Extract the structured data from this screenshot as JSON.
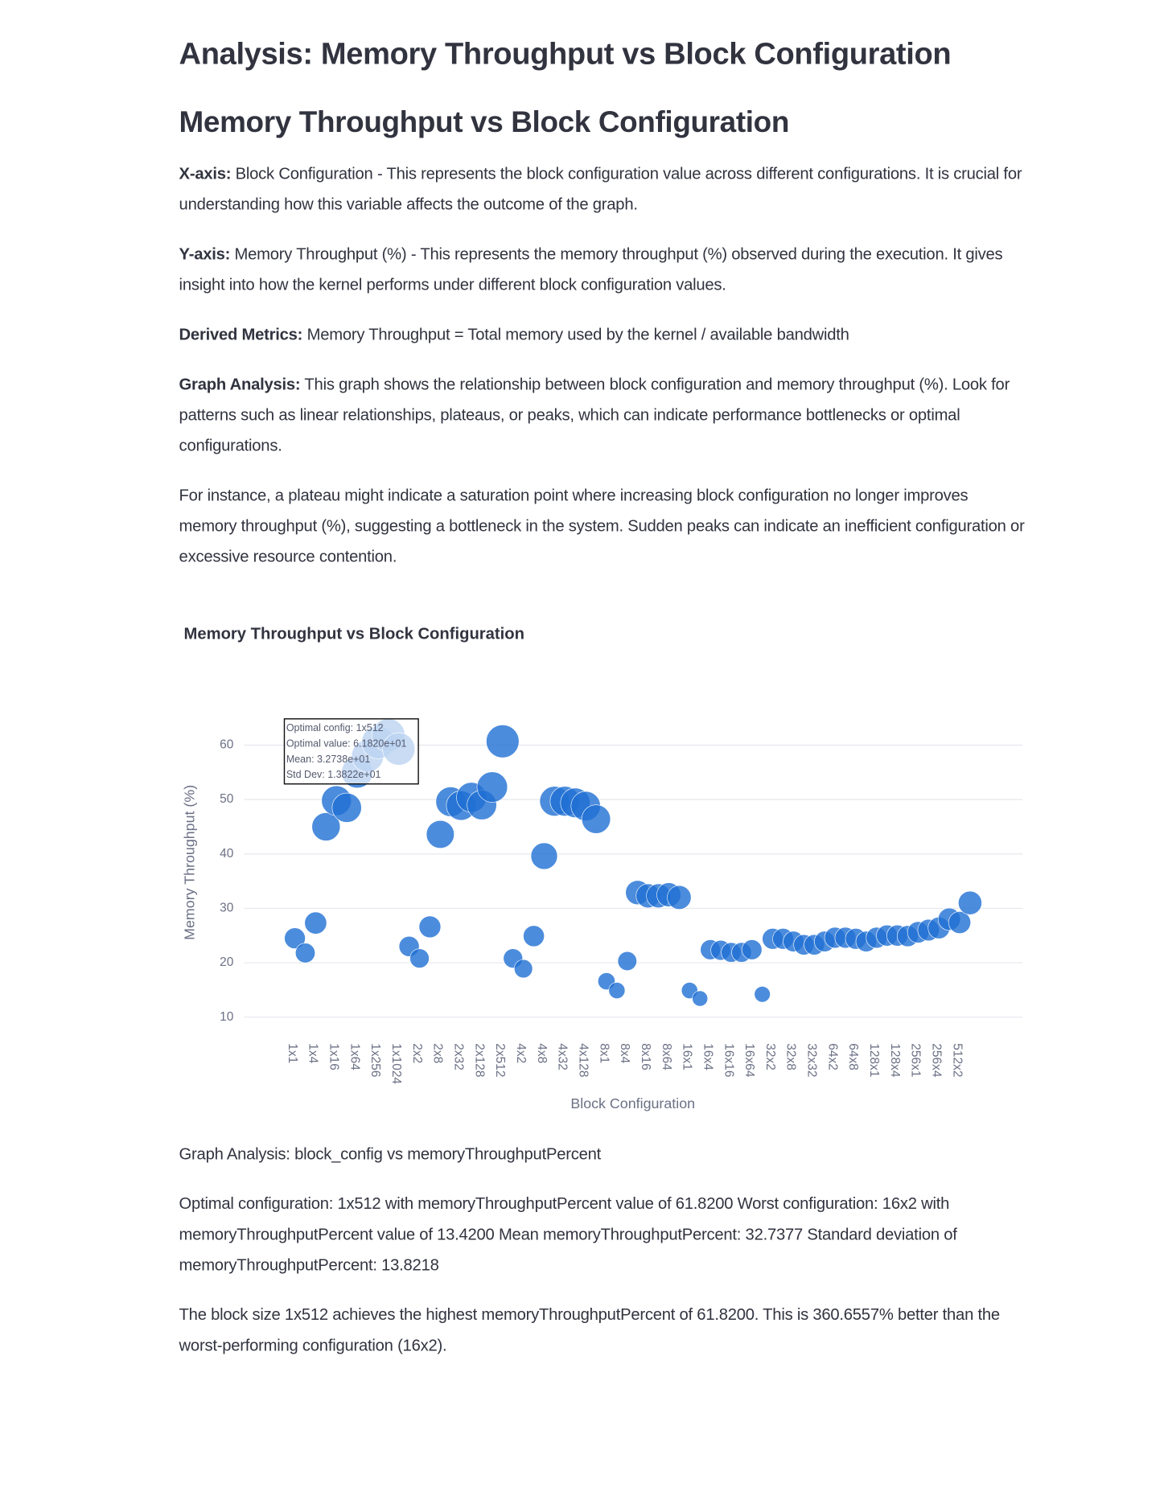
{
  "header": {
    "title": "Analysis: Memory Throughput vs Block Configuration"
  },
  "section_title": "Memory Throughput vs Block Configuration",
  "explanations": [
    {
      "label": "X-axis:",
      "text": "Block Configuration - This represents the block configuration value across different configurations. It is crucial for understanding how this variable affects the outcome of the graph."
    },
    {
      "label": "Y-axis:",
      "text": "Memory Throughput (%) - This represents the memory throughput (%) observed during the execution. It gives insight into how the kernel performs under different block configuration values."
    },
    {
      "label": "Derived Metrics:",
      "text": "Memory Throughput = Total memory used by the kernel / available bandwidth"
    },
    {
      "label": "Graph Analysis:",
      "text": "This graph shows the relationship between block configuration and memory throughput (%). Look for patterns such as linear relationships, plateaus, or peaks, which can indicate performance bottlenecks or optimal configurations."
    }
  ],
  "note": "For instance, a plateau might indicate a saturation point where increasing block configuration no longer improves memory throughput (%), suggesting a bottleneck in the system. Sudden peaks can indicate an inefficient configuration or excessive resource contention.",
  "chart_data": {
    "type": "scatter",
    "title": "Memory Throughput vs Block Configuration",
    "x_label": "Block Configuration",
    "y_label": "Memory Throughput (%)",
    "categories": [
      "1x1",
      null,
      "1x4",
      null,
      "1x16",
      null,
      "1x64",
      null,
      "1x256",
      null,
      "1x1024",
      null,
      "2x2",
      null,
      "2x8",
      null,
      "2x32",
      null,
      "2x128",
      null,
      "2x512",
      null,
      "4x2",
      null,
      "4x8",
      null,
      "4x32",
      null,
      "4x128",
      null,
      "8x1",
      null,
      "8x4",
      null,
      "8x16",
      null,
      "8x64",
      null,
      "16x1",
      null,
      "16x4",
      null,
      "16x16",
      null,
      "16x64",
      null,
      "32x2",
      null,
      "32x8",
      null,
      "32x32",
      null,
      "64x2",
      null,
      "64x8",
      null,
      "128x1",
      null,
      "128x4",
      null,
      "256x1",
      null,
      "256x4",
      null,
      "512x2",
      null
    ],
    "values": [
      24.5,
      21.8,
      27.3,
      45.0,
      49.8,
      48.5,
      55.0,
      58.0,
      60.5,
      61.82,
      59.3,
      23.0,
      20.8,
      26.6,
      43.6,
      49.6,
      48.9,
      50.4,
      49.0,
      52.3,
      60.7,
      20.8,
      18.9,
      24.9,
      39.6,
      49.7,
      49.7,
      49.4,
      48.8,
      46.4,
      16.6,
      14.9,
      20.3,
      32.9,
      32.3,
      32.3,
      32.5,
      32.0,
      14.9,
      13.42,
      22.4,
      22.3,
      21.9,
      21.9,
      22.4,
      14.2,
      24.4,
      24.4,
      23.9,
      23.3,
      23.3,
      23.9,
      24.6,
      24.6,
      24.4,
      23.9,
      24.6,
      25.0,
      25.0,
      24.9,
      25.6,
      26.0,
      26.4,
      28.0,
      27.4,
      31.0
    ],
    "color": "#1f6fd3",
    "ylim": [
      8,
      68
    ],
    "yticks": [
      10,
      20,
      30,
      40,
      50,
      60
    ],
    "grid": true,
    "annotation": [
      "Optimal config: 1x512",
      "Optimal value: 6.1820e+01",
      "Mean: 3.2738e+01",
      "Std Dev: 1.3822e+01"
    ]
  },
  "analysis": {
    "heading": "Graph Analysis: block_config vs memoryThroughputPercent",
    "summary": "Optimal configuration: 1x512 with memoryThroughputPercent value of 61.8200 Worst configuration: 16x2 with memoryThroughputPercent value of 13.4200 Mean memoryThroughputPercent: 32.7377 Standard deviation of memoryThroughputPercent: 13.8218",
    "comparison": "The block size 1x512 achieves the highest memoryThroughputPercent of 61.8200. This is 360.6557% better than the worst-performing configuration (16x2)."
  }
}
